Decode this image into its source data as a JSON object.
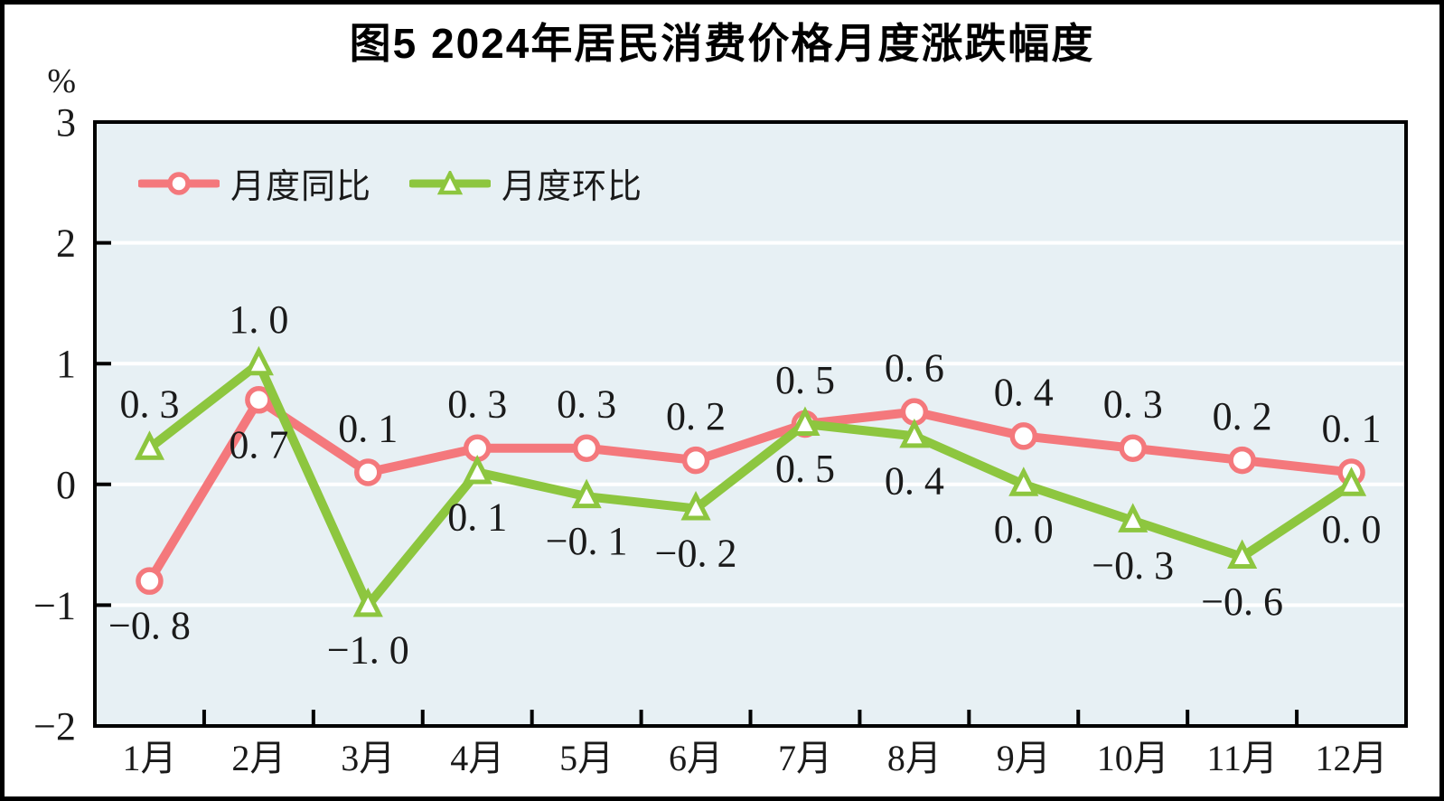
{
  "title": "图5  2024年居民消费价格月度涨跌幅度",
  "y_axis": {
    "unit": "%",
    "tick_values": [
      3,
      2,
      1,
      0,
      -1,
      -2
    ],
    "tick_labels": [
      "3",
      "2",
      "1",
      "0",
      "−1",
      "−2"
    ]
  },
  "x_axis": {
    "categories": [
      "1月",
      "2月",
      "3月",
      "4月",
      "5月",
      "6月",
      "7月",
      "8月",
      "9月",
      "10月",
      "11月",
      "12月"
    ]
  },
  "legend": {
    "items": [
      {
        "label": "月度同比",
        "marker": "circle",
        "color": "#f4787c"
      },
      {
        "label": "月度环比",
        "marker": "triangle",
        "color": "#8dc63f"
      }
    ]
  },
  "colors": {
    "tongbi_red": "#f4787c",
    "huanbi_green": "#8dc63f",
    "plot_background": "#e7f0f4",
    "gridline": "#ffffff",
    "axis": "#000000",
    "label_text": "#1a1a1a"
  },
  "chart_data": {
    "type": "line",
    "title": "图5  2024年居民消费价格月度涨跌幅度",
    "ylabel": "%",
    "ylim": [
      -2,
      3
    ],
    "grid": "horizontal",
    "legend_position": "inside-top-left",
    "categories": [
      "1月",
      "2月",
      "3月",
      "4月",
      "5月",
      "6月",
      "7月",
      "8月",
      "9月",
      "10月",
      "11月",
      "12月"
    ],
    "series": [
      {
        "name": "月度同比",
        "marker": "circle",
        "color": "#f4787c",
        "values": [
          -0.8,
          0.7,
          0.1,
          0.3,
          0.3,
          0.2,
          0.5,
          0.6,
          0.4,
          0.3,
          0.2,
          0.1
        ],
        "labels": [
          "−0. 8",
          "0. 7",
          "0. 1",
          "0. 3",
          "0. 3",
          "0. 2",
          "0. 5",
          "0. 6",
          "0. 4",
          "0. 3",
          "0. 2",
          "0. 1"
        ],
        "label_positions": [
          "below",
          "below",
          "above",
          "above",
          "above",
          "above",
          "above",
          "above",
          "above",
          "above",
          "above",
          "above"
        ]
      },
      {
        "name": "月度环比",
        "marker": "triangle",
        "color": "#8dc63f",
        "values": [
          0.3,
          1.0,
          -1.0,
          0.1,
          -0.1,
          -0.2,
          0.5,
          0.4,
          0.0,
          -0.3,
          -0.6,
          0.0
        ],
        "labels": [
          "0. 3",
          "1. 0",
          "−1. 0",
          "0. 1",
          "−0. 1",
          "−0. 2",
          "0. 5",
          "0. 4",
          "0. 0",
          "−0. 3",
          "−0. 6",
          "0. 0"
        ],
        "label_positions": [
          "above",
          "above",
          "below",
          "below",
          "below",
          "below",
          "below",
          "below",
          "below",
          "below",
          "below",
          "below"
        ]
      }
    ]
  }
}
